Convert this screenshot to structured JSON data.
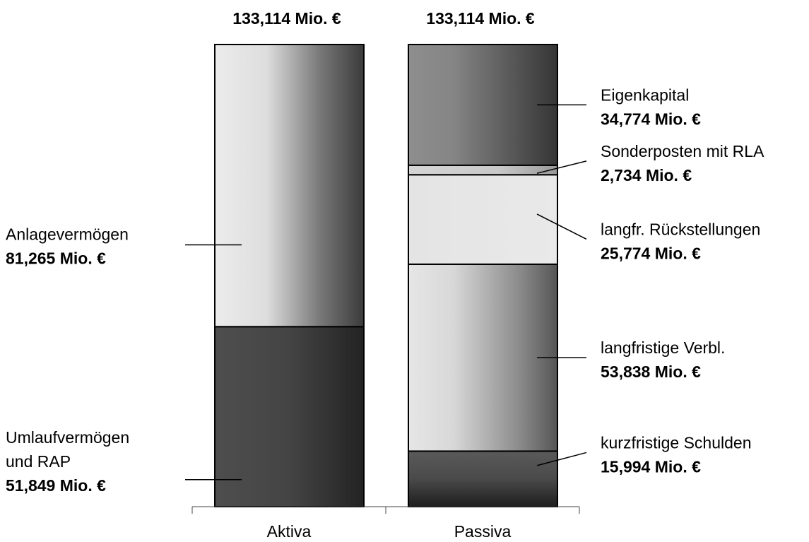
{
  "chart_data": {
    "type": "bar",
    "subtype": "stacked-100",
    "categories": [
      "Aktiva",
      "Passiva"
    ],
    "totals": [
      {
        "category": "Aktiva",
        "label": "133,114 Mio. €"
      },
      {
        "category": "Passiva",
        "label": "133,114 Mio. €"
      }
    ],
    "stacks": [
      {
        "category": "Aktiva",
        "label_side": "left",
        "segments": [
          {
            "name_lines": [
              "Umlaufvermögen",
              "und RAP"
            ],
            "value": 51.849,
            "value_label": "51,849 Mio. €",
            "shade": "dark"
          },
          {
            "name_lines": [
              "Anlagevermögen"
            ],
            "value": 81.265,
            "value_label": "81,265 Mio. €",
            "shade": "light"
          }
        ]
      },
      {
        "category": "Passiva",
        "label_side": "right",
        "segments": [
          {
            "name_lines": [
              "kurzfristige Schulden"
            ],
            "value": 15.994,
            "value_label": "15,994 Mio. €",
            "shade": "darkest"
          },
          {
            "name_lines": [
              "langfristige Verbl."
            ],
            "value": 53.838,
            "value_label": "53,838 Mio. €",
            "shade": "light-mid"
          },
          {
            "name_lines": [
              "langfr. Rückstellungen"
            ],
            "value": 25.774,
            "value_label": "25,774 Mio. €",
            "shade": "lightest"
          },
          {
            "name_lines": [
              "Sonderposten mit RLA"
            ],
            "value": 2.734,
            "value_label": "2,734 Mio. €",
            "shade": "pale"
          },
          {
            "name_lines": [
              "Eigenkapital"
            ],
            "value": 34.774,
            "value_label": "34,774 Mio. €",
            "shade": "mid"
          }
        ]
      }
    ],
    "grid": false,
    "legend": "none",
    "colors": {
      "outline": "#000000",
      "text": "#000000",
      "axis": "#444444"
    }
  }
}
